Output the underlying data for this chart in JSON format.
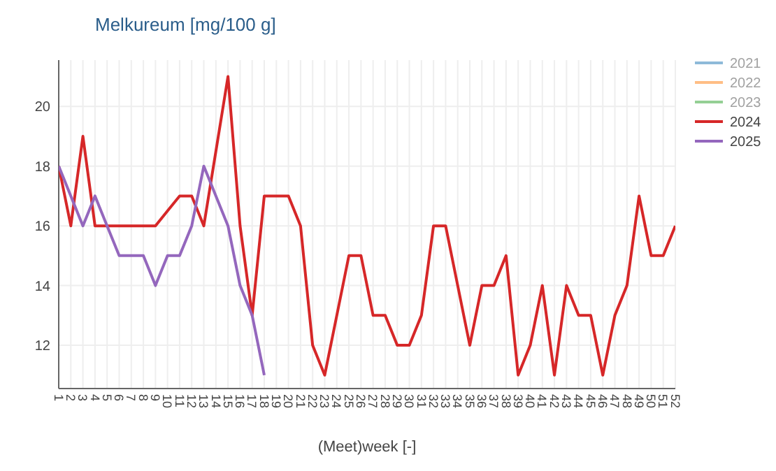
{
  "chart_data": {
    "type": "line",
    "title": "Melkureum [mg/100 g]",
    "xlabel": "(Meet)week [-]",
    "categories": [
      "1",
      "2",
      "3",
      "4",
      "5",
      "6",
      "7",
      "8",
      "9",
      "10",
      "11",
      "12",
      "13",
      "14",
      "15",
      "16",
      "17",
      "18",
      "19",
      "20",
      "21",
      "22",
      "23",
      "24",
      "25",
      "26",
      "27",
      "28",
      "29",
      "30",
      "31",
      "32",
      "33",
      "34",
      "35",
      "36",
      "37",
      "38",
      "39",
      "40",
      "41",
      "42",
      "43",
      "44",
      "45",
      "46",
      "47",
      "48",
      "49",
      "50",
      "51",
      "52"
    ],
    "series": [
      {
        "name": "2021",
        "color": "#1f77b4",
        "values": [
          null,
          null,
          null,
          null,
          null,
          null,
          null,
          null,
          null,
          null,
          null,
          null,
          null,
          null,
          null,
          null,
          null,
          null,
          null,
          null,
          null,
          null,
          null,
          null,
          null,
          null,
          null,
          null,
          null,
          null,
          null,
          null,
          null,
          null,
          null,
          null,
          null,
          null,
          null,
          null,
          null,
          null,
          null,
          null,
          null,
          null,
          null,
          null,
          null,
          null,
          null,
          null
        ]
      },
      {
        "name": "2022",
        "color": "#ff7f0e",
        "values": [
          null,
          null,
          null,
          null,
          null,
          null,
          null,
          null,
          null,
          null,
          null,
          null,
          null,
          null,
          null,
          null,
          null,
          null,
          null,
          null,
          null,
          null,
          null,
          null,
          null,
          null,
          null,
          null,
          null,
          null,
          null,
          null,
          null,
          null,
          null,
          null,
          null,
          null,
          null,
          null,
          null,
          null,
          null,
          null,
          null,
          null,
          null,
          null,
          null,
          null,
          null,
          null
        ]
      },
      {
        "name": "2023",
        "color": "#2ca02c",
        "values": [
          null,
          null,
          null,
          null,
          null,
          null,
          null,
          null,
          null,
          null,
          null,
          null,
          null,
          null,
          null,
          null,
          null,
          null,
          null,
          null,
          null,
          null,
          null,
          null,
          null,
          null,
          null,
          null,
          null,
          null,
          null,
          null,
          null,
          null,
          null,
          null,
          null,
          null,
          null,
          null,
          null,
          null,
          null,
          null,
          null,
          null,
          null,
          null,
          null,
          null,
          null,
          null
        ]
      },
      {
        "name": "2024",
        "color": "#d62728",
        "values": [
          18,
          16,
          19,
          16,
          16,
          16,
          16,
          16,
          16,
          16.5,
          17,
          17,
          16,
          18.5,
          21,
          16,
          13,
          17,
          17,
          17,
          16,
          12,
          11,
          13,
          15,
          15,
          13,
          13,
          12,
          12,
          13,
          16,
          16,
          14,
          12,
          14,
          14,
          15,
          11,
          12,
          14,
          11,
          14,
          13,
          13,
          11,
          13,
          14,
          17,
          15,
          15,
          16
        ]
      },
      {
        "name": "2025",
        "color": "#9467bd",
        "values": [
          18,
          17,
          16,
          17,
          16,
          15,
          15,
          15,
          14,
          15,
          15,
          16,
          18,
          17,
          16,
          14,
          13,
          11,
          null,
          null,
          null,
          null,
          null,
          null,
          null,
          null,
          null,
          null,
          null,
          null,
          null,
          null,
          null,
          null,
          null,
          null,
          null,
          null,
          null,
          null,
          null,
          null,
          null,
          null,
          null,
          null,
          null,
          null,
          null,
          null,
          null,
          null
        ]
      }
    ],
    "ylim": [
      10.55,
      21.55
    ],
    "yticks": [
      12,
      14,
      16,
      18,
      20
    ],
    "grid": true,
    "legend": "top right",
    "line_style": "solid",
    "marker": "none"
  }
}
